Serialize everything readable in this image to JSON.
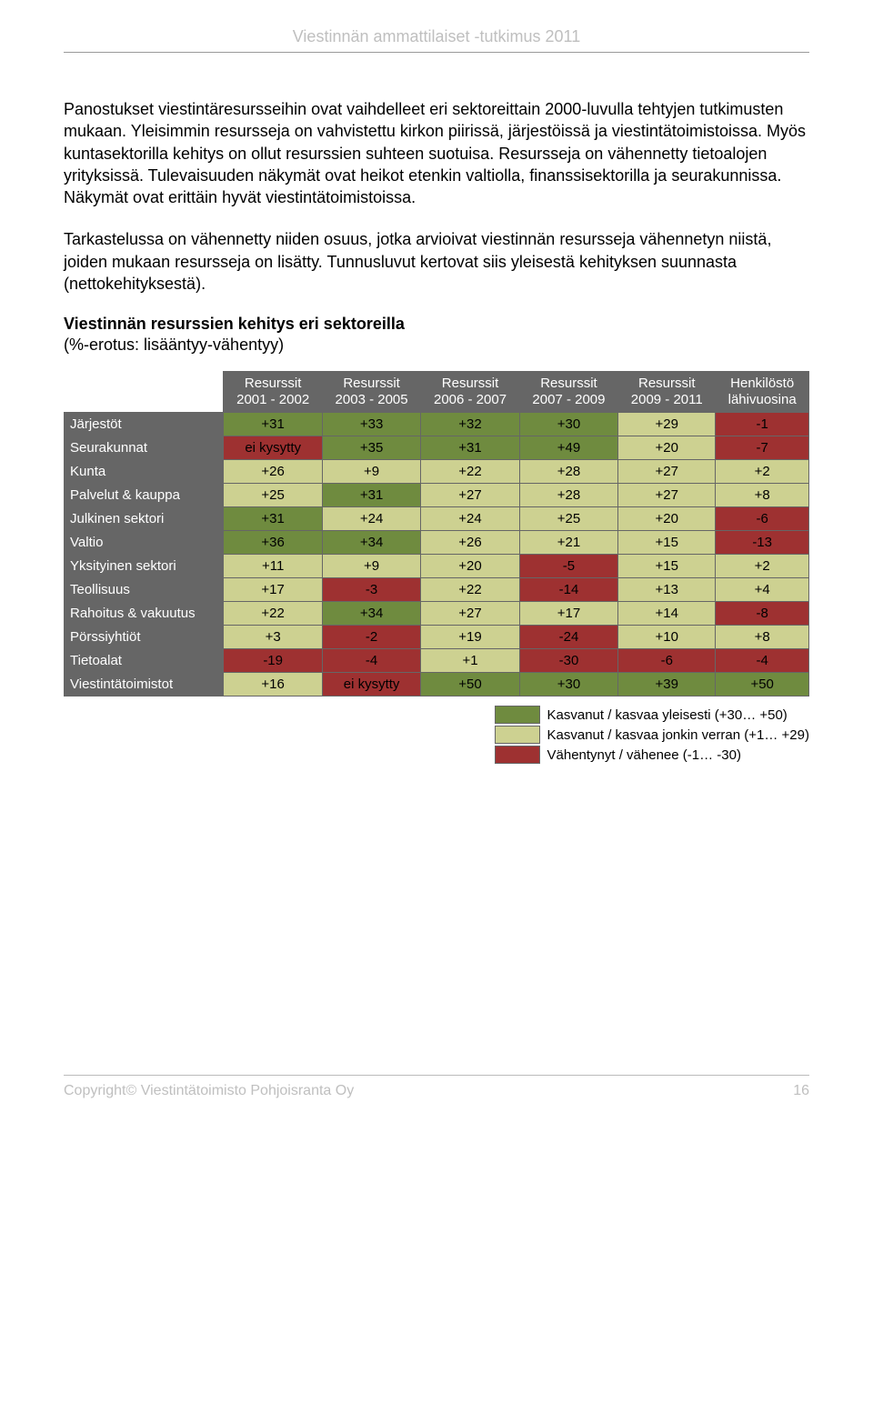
{
  "header": {
    "title": "Viestinnän ammattilaiset -tutkimus 2011"
  },
  "paragraphs": {
    "p1": "Panostukset viestintäresursseihin ovat vaihdelleet eri sektoreittain 2000-luvulla tehtyjen tutkimusten mukaan. Yleisimmin resursseja on vahvistettu kirkon piirissä, järjestöissä ja viestintätoimistoissa. Myös kuntasektorilla kehitys on ollut resurssien suhteen suotuisa. Resursseja on vähennetty tietoalojen yrityksissä. Tulevaisuuden näkymät ovat heikot etenkin valtiolla, finanssisektorilla ja seurakunnissa. Näkymät ovat erittäin hyvät viestintätoimistoissa.",
    "p2": "Tarkastelussa on vähennetty niiden osuus, jotka arvioivat viestinnän resursseja vähennetyn niistä, joiden mukaan resursseja on lisätty. Tunnusluvut kertovat siis yleisestä kehityksen suunnasta (nettokehityksestä)."
  },
  "section": {
    "title": "Viestinnän resurssien kehitys eri sektoreilla",
    "subtitle": "(%-erotus: lisääntyy-vähentyy)"
  },
  "colors": {
    "high": "#6f8b3f",
    "mid": "#cdd191",
    "low": "#9e3131",
    "head_bg": "#666666",
    "head_fg": "#ffffff",
    "border": "#666666"
  },
  "table": {
    "columns": [
      {
        "line1": "Resurssit",
        "line2": "2001 - 2002"
      },
      {
        "line1": "Resurssit",
        "line2": "2003 - 2005"
      },
      {
        "line1": "Resurssit",
        "line2": "2006 - 2007"
      },
      {
        "line1": "Resurssit",
        "line2": "2007 - 2009"
      },
      {
        "line1": "Resurssit",
        "line2": "2009 - 2011"
      },
      {
        "line1": "Henkilöstö",
        "line2": "lähivuosina"
      }
    ],
    "rows": [
      {
        "label": "Järjestöt",
        "cells": [
          {
            "v": "+31",
            "c": "high"
          },
          {
            "v": "+33",
            "c": "high"
          },
          {
            "v": "+32",
            "c": "high"
          },
          {
            "v": "+30",
            "c": "high"
          },
          {
            "v": "+29",
            "c": "mid"
          },
          {
            "v": "-1",
            "c": "low"
          }
        ]
      },
      {
        "label": "Seurakunnat",
        "cells": [
          {
            "v": "ei kysytty",
            "c": "low"
          },
          {
            "v": "+35",
            "c": "high"
          },
          {
            "v": "+31",
            "c": "high"
          },
          {
            "v": "+49",
            "c": "high"
          },
          {
            "v": "+20",
            "c": "mid"
          },
          {
            "v": "-7",
            "c": "low"
          }
        ]
      },
      {
        "label": "Kunta",
        "cells": [
          {
            "v": "+26",
            "c": "mid"
          },
          {
            "v": "+9",
            "c": "mid"
          },
          {
            "v": "+22",
            "c": "mid"
          },
          {
            "v": "+28",
            "c": "mid"
          },
          {
            "v": "+27",
            "c": "mid"
          },
          {
            "v": "+2",
            "c": "mid"
          }
        ]
      },
      {
        "label": "Palvelut & kauppa",
        "cells": [
          {
            "v": "+25",
            "c": "mid"
          },
          {
            "v": "+31",
            "c": "high"
          },
          {
            "v": "+27",
            "c": "mid"
          },
          {
            "v": "+28",
            "c": "mid"
          },
          {
            "v": "+27",
            "c": "mid"
          },
          {
            "v": "+8",
            "c": "mid"
          }
        ]
      },
      {
        "label": "Julkinen sektori",
        "cells": [
          {
            "v": "+31",
            "c": "high"
          },
          {
            "v": "+24",
            "c": "mid"
          },
          {
            "v": "+24",
            "c": "mid"
          },
          {
            "v": "+25",
            "c": "mid"
          },
          {
            "v": "+20",
            "c": "mid"
          },
          {
            "v": "-6",
            "c": "low"
          }
        ]
      },
      {
        "label": "Valtio",
        "cells": [
          {
            "v": "+36",
            "c": "high"
          },
          {
            "v": "+34",
            "c": "high"
          },
          {
            "v": "+26",
            "c": "mid"
          },
          {
            "v": "+21",
            "c": "mid"
          },
          {
            "v": "+15",
            "c": "mid"
          },
          {
            "v": "-13",
            "c": "low"
          }
        ]
      },
      {
        "label": "Yksityinen sektori",
        "cells": [
          {
            "v": "+11",
            "c": "mid"
          },
          {
            "v": "+9",
            "c": "mid"
          },
          {
            "v": "+20",
            "c": "mid"
          },
          {
            "v": "-5",
            "c": "low"
          },
          {
            "v": "+15",
            "c": "mid"
          },
          {
            "v": "+2",
            "c": "mid"
          }
        ]
      },
      {
        "label": "Teollisuus",
        "cells": [
          {
            "v": "+17",
            "c": "mid"
          },
          {
            "v": "-3",
            "c": "low"
          },
          {
            "v": "+22",
            "c": "mid"
          },
          {
            "v": "-14",
            "c": "low"
          },
          {
            "v": "+13",
            "c": "mid"
          },
          {
            "v": "+4",
            "c": "mid"
          }
        ]
      },
      {
        "label": "Rahoitus & vakuutus",
        "cells": [
          {
            "v": "+22",
            "c": "mid"
          },
          {
            "v": "+34",
            "c": "high"
          },
          {
            "v": "+27",
            "c": "mid"
          },
          {
            "v": "+17",
            "c": "mid"
          },
          {
            "v": "+14",
            "c": "mid"
          },
          {
            "v": "-8",
            "c": "low"
          }
        ]
      },
      {
        "label": "Pörssiyhtiöt",
        "cells": [
          {
            "v": "+3",
            "c": "mid"
          },
          {
            "v": "-2",
            "c": "low"
          },
          {
            "v": "+19",
            "c": "mid"
          },
          {
            "v": "-24",
            "c": "low"
          },
          {
            "v": "+10",
            "c": "mid"
          },
          {
            "v": "+8",
            "c": "mid"
          }
        ]
      },
      {
        "label": "Tietoalat",
        "cells": [
          {
            "v": "-19",
            "c": "low"
          },
          {
            "v": "-4",
            "c": "low"
          },
          {
            "v": "+1",
            "c": "mid"
          },
          {
            "v": "-30",
            "c": "low"
          },
          {
            "v": "-6",
            "c": "low"
          },
          {
            "v": "-4",
            "c": "low"
          }
        ]
      },
      {
        "label": "Viestintätoimistot",
        "cells": [
          {
            "v": "+16",
            "c": "mid"
          },
          {
            "v": "ei kysytty",
            "c": "low"
          },
          {
            "v": "+50",
            "c": "high"
          },
          {
            "v": "+30",
            "c": "high"
          },
          {
            "v": "+39",
            "c": "high"
          },
          {
            "v": "+50",
            "c": "high"
          }
        ]
      }
    ]
  },
  "legend": {
    "items": [
      {
        "c": "high",
        "label": "Kasvanut / kasvaa yleisesti (+30… +50)"
      },
      {
        "c": "mid",
        "label": "Kasvanut / kasvaa jonkin verran (+1… +29)"
      },
      {
        "c": "low",
        "label": "Vähentynyt / vähenee (-1… -30)"
      }
    ]
  },
  "footer": {
    "copyright_prefix": "Copyright",
    "copyright_suffix": " Viestintätoimisto Pohjoisranta Oy",
    "page": "16"
  }
}
